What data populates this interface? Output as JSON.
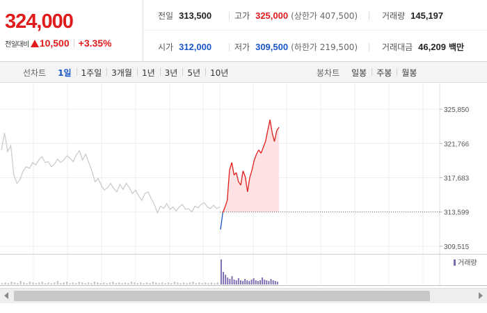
{
  "header": {
    "current_price": "324,000",
    "change_label": "전일대비",
    "change_value": "10,500",
    "change_pct": "+3.35%",
    "stats": {
      "prev_close": {
        "label": "전일",
        "value": "313,500"
      },
      "high": {
        "label": "고가",
        "value": "325,000",
        "sub": "(상한가 407,500)"
      },
      "volume": {
        "label": "거래량",
        "value": "145,197"
      },
      "open": {
        "label": "시가",
        "value": "312,000"
      },
      "low": {
        "label": "저가",
        "value": "309,500",
        "sub": "(하한가 219,500)"
      },
      "trade_amount": {
        "label": "거래대금",
        "value": "46,209",
        "unit": "백만"
      }
    }
  },
  "toolbar": {
    "line_chart_title": "선차트",
    "line_periods": [
      "1일",
      "1주일",
      "3개월",
      "1년",
      "3년",
      "5년",
      "10년"
    ],
    "active_period": "1일",
    "candle_chart_title": "봉차트",
    "candle_periods": [
      "일봉",
      "주봉",
      "월봉"
    ]
  },
  "colors": {
    "up": "#e01b1b",
    "down": "#1a56c7",
    "prev_line": "#e01b1b",
    "history_line": "#c8c8c8",
    "volume_history": "#c8c8c8",
    "volume_today": "#7c6bb0"
  },
  "chart_data": {
    "type": "line",
    "y_ticks": [
      "325,850",
      "321,766",
      "317,683",
      "313,599",
      "309,515"
    ],
    "y_tick_values": [
      325850,
      321766,
      317683,
      313599,
      309515
    ],
    "ylim": [
      309515,
      325850
    ],
    "reference_value": 313599,
    "legend": "거래량",
    "grid": true,
    "series": [
      {
        "values": [
          321000,
          323000,
          320800,
          321500,
          318000,
          317000,
          317500,
          318500,
          319000,
          318800,
          319500,
          319200,
          319800,
          320200,
          319500,
          319600,
          319000,
          319300,
          319900,
          319500,
          319800,
          320300,
          320000,
          319600,
          320400,
          320900,
          319800,
          320500,
          319500,
          318500,
          317200,
          317600,
          316800,
          316200,
          316500,
          317000,
          316400,
          316000,
          316900,
          316300,
          317000,
          316500,
          315800,
          316200,
          315500,
          315000,
          315800,
          316000,
          315200,
          314500,
          313500,
          314300,
          314000,
          314600,
          313900,
          314200,
          313700,
          314200,
          314500,
          313900,
          314000,
          313600,
          314300,
          314100,
          314500,
          314700,
          314200,
          314000,
          314400,
          314000,
          314200
        ]
      },
      {
        "values": [
          311500,
          313500,
          314200,
          315000,
          318600,
          319500,
          318000,
          318300,
          317200,
          316800,
          318500,
          317800,
          316000,
          317700,
          318600,
          319800,
          320500,
          321000,
          320600,
          321300,
          322000,
          323300,
          324600,
          323000,
          322000,
          323300,
          323700
        ]
      }
    ],
    "volume": {
      "history": [
        2,
        3,
        2,
        4,
        3,
        2,
        5,
        3,
        2,
        4,
        3,
        2,
        3,
        4,
        2,
        3,
        2,
        3,
        5,
        2,
        3,
        4,
        2,
        3,
        2,
        4,
        3,
        2,
        3,
        2,
        4,
        3,
        2,
        3,
        2,
        3,
        4,
        2,
        3,
        2,
        3,
        2,
        4,
        3,
        2,
        3,
        2,
        3,
        2,
        4,
        3,
        2,
        3,
        2,
        3,
        2,
        4,
        3,
        2,
        3,
        2,
        3,
        4,
        2,
        3,
        2,
        3,
        2,
        3,
        2,
        3
      ],
      "today": [
        36,
        18,
        14,
        10,
        8,
        12,
        7,
        6,
        9,
        6,
        5,
        8,
        6,
        5,
        7,
        9,
        6,
        5,
        6,
        10,
        7,
        6,
        5,
        8,
        6,
        5,
        4
      ]
    }
  }
}
